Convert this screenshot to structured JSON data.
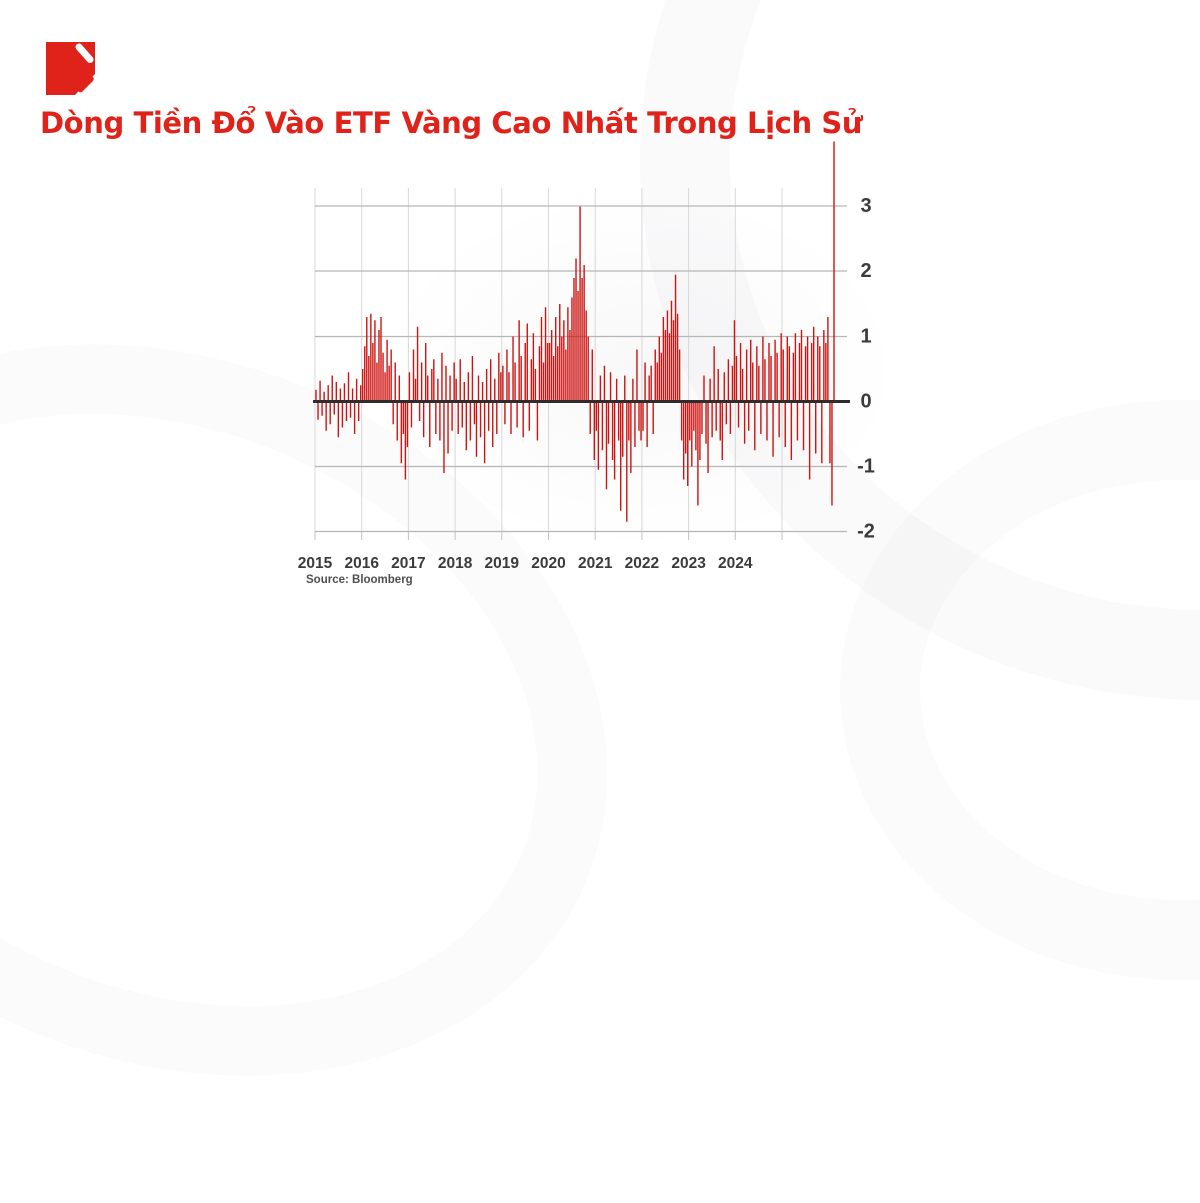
{
  "header": {
    "title": "Dòng Tiền Đổ Vào ETF Vàng Cao Nhất Trong Lịch Sử"
  },
  "colors": {
    "brand_red": "#DF231A",
    "bar_red": "#CE1310",
    "axis_text": "#3B3B3B",
    "grid_light": "#D8D8D8",
    "grid_mid": "#B6B6B6",
    "zero_line": "#2D2D2D"
  },
  "source": {
    "label": "Source: Bloomberg"
  },
  "y_axis": {
    "labels": [
      "3",
      "2",
      "1",
      "0",
      "-1",
      "-2"
    ]
  },
  "x_axis": {
    "labels": [
      "2015",
      "2016",
      "2017",
      "2018",
      "2019",
      "2020",
      "2021",
      "2022",
      "2023",
      "2024"
    ]
  },
  "chart_data": {
    "type": "bar",
    "title": "Dòng Tiền Đổ Vào ETF Vàng Cao Nhất Trong Lịch Sử",
    "source": "Bloomberg",
    "x_start_year": 2015,
    "points_per_year": 23,
    "x_tick_labels": [
      "2015",
      "2016",
      "2017",
      "2018",
      "2019",
      "2020",
      "2021",
      "2022",
      "2023",
      "2024"
    ],
    "y_ticks": [
      3,
      2,
      1,
      0,
      -1,
      -2
    ],
    "ylim": [
      -2.3,
      4.1
    ],
    "grid": true,
    "legend": null,
    "max_value": 4.0,
    "min_value": -1.85,
    "values": [
      0.18,
      -0.28,
      0.32,
      -0.22,
      0.15,
      -0.45,
      0.25,
      -0.35,
      0.4,
      -0.2,
      0.3,
      -0.55,
      0.2,
      -0.4,
      0.28,
      -0.3,
      0.45,
      -0.25,
      0.2,
      -0.5,
      0.35,
      -0.3,
      0.25,
      0.5,
      0.85,
      1.3,
      0.7,
      1.35,
      0.9,
      1.25,
      0.6,
      1.1,
      1.3,
      0.75,
      0.45,
      0.95,
      0.55,
      0.8,
      -0.35,
      0.6,
      -0.6,
      0.4,
      -0.95,
      -0.5,
      -1.2,
      -0.7,
      0.45,
      -0.4,
      0.8,
      0.35,
      1.15,
      -0.3,
      0.6,
      -0.55,
      0.9,
      0.4,
      -0.7,
      0.5,
      0.65,
      -0.5,
      0.35,
      -0.6,
      0.75,
      -1.1,
      0.55,
      -0.8,
      0.4,
      -0.45,
      0.6,
      0.35,
      -0.5,
      0.65,
      -0.4,
      0.3,
      -0.75,
      0.45,
      -0.6,
      0.7,
      -0.35,
      -0.85,
      0.4,
      -0.55,
      0.3,
      -0.95,
      0.5,
      -0.45,
      0.65,
      -0.7,
      0.35,
      -0.5,
      0.75,
      0.45,
      0.55,
      -0.35,
      0.8,
      0.45,
      -0.5,
      1.0,
      0.6,
      -0.4,
      1.25,
      0.7,
      -0.55,
      0.9,
      1.2,
      -0.45,
      0.65,
      1.05,
      0.5,
      -0.6,
      0.85,
      1.3,
      0.6,
      1.45,
      0.9,
      0.9,
      1.1,
      0.7,
      1.3,
      0.85,
      1.5,
      1.0,
      1.25,
      0.8,
      1.45,
      1.1,
      1.6,
      1.9,
      2.2,
      1.7,
      3.0,
      1.9,
      2.1,
      1.4,
      1.0,
      -0.5,
      0.8,
      -0.9,
      -0.45,
      -1.05,
      0.4,
      -0.75,
      0.55,
      -1.35,
      -0.65,
      0.45,
      -0.9,
      -1.2,
      0.35,
      -0.6,
      -1.68,
      -0.85,
      0.4,
      -1.85,
      -0.6,
      -1.1,
      0.35,
      -0.7,
      0.8,
      -0.45,
      -0.6,
      -0.45,
      0.6,
      -0.7,
      0.4,
      0.55,
      -0.5,
      0.8,
      0.6,
      1.0,
      0.75,
      1.3,
      1.1,
      1.4,
      1.05,
      1.55,
      1.25,
      1.95,
      1.35,
      0.8,
      -0.6,
      -1.2,
      -0.8,
      -1.3,
      -0.6,
      -1.0,
      -0.45,
      -0.75,
      -1.6,
      -0.9,
      -0.5,
      0.4,
      -0.65,
      -1.1,
      0.35,
      -0.55,
      0.85,
      -0.45,
      0.5,
      -0.6,
      -0.9,
      0.45,
      -0.35,
      0.65,
      -0.5,
      0.55,
      1.25,
      0.7,
      -0.4,
      0.9,
      0.5,
      -0.65,
      0.8,
      -0.45,
      0.95,
      0.6,
      -0.75,
      0.85,
      0.55,
      -0.5,
      1.0,
      0.65,
      -0.6,
      0.9,
      0.7,
      -0.85,
      0.95,
      0.75,
      -0.55,
      1.05,
      0.8,
      -0.7,
      1.0,
      0.85,
      -0.9,
      0.75,
      1.05,
      -0.6,
      0.9,
      1.1,
      -0.75,
      0.85,
      1.0,
      -1.2,
      0.9,
      1.15,
      -0.8,
      1.0,
      0.85,
      -0.95,
      1.1,
      0.9,
      1.3,
      -0.95,
      -1.6,
      4.0
    ]
  }
}
